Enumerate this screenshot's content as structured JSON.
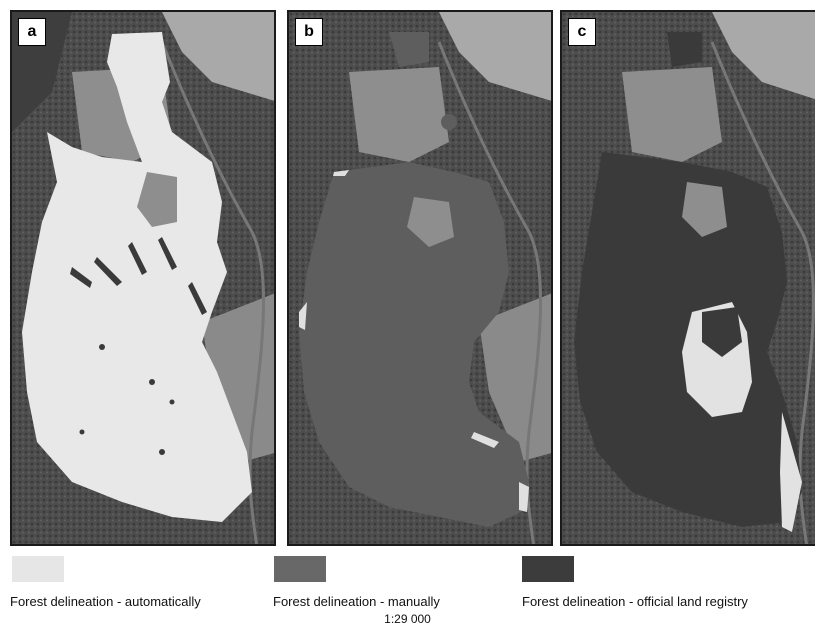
{
  "panels": [
    {
      "letter": "a",
      "fill_color": "#e8e8e8",
      "description_key": "automatic"
    },
    {
      "letter": "b",
      "fill_color": "#5e5e5e",
      "description_key": "manual"
    },
    {
      "letter": "c",
      "fill_color": "#3a3a3a",
      "description_key": "registry"
    }
  ],
  "legend": {
    "automatic": {
      "label": "Forest delineation - automatically",
      "color": "#e6e6e6"
    },
    "manual": {
      "label": "Forest delineation - manually",
      "color": "#686868"
    },
    "registry": {
      "label": "Forest delineation - official land registry",
      "color": "#3c3c3c"
    }
  },
  "scale": "1:29 000"
}
